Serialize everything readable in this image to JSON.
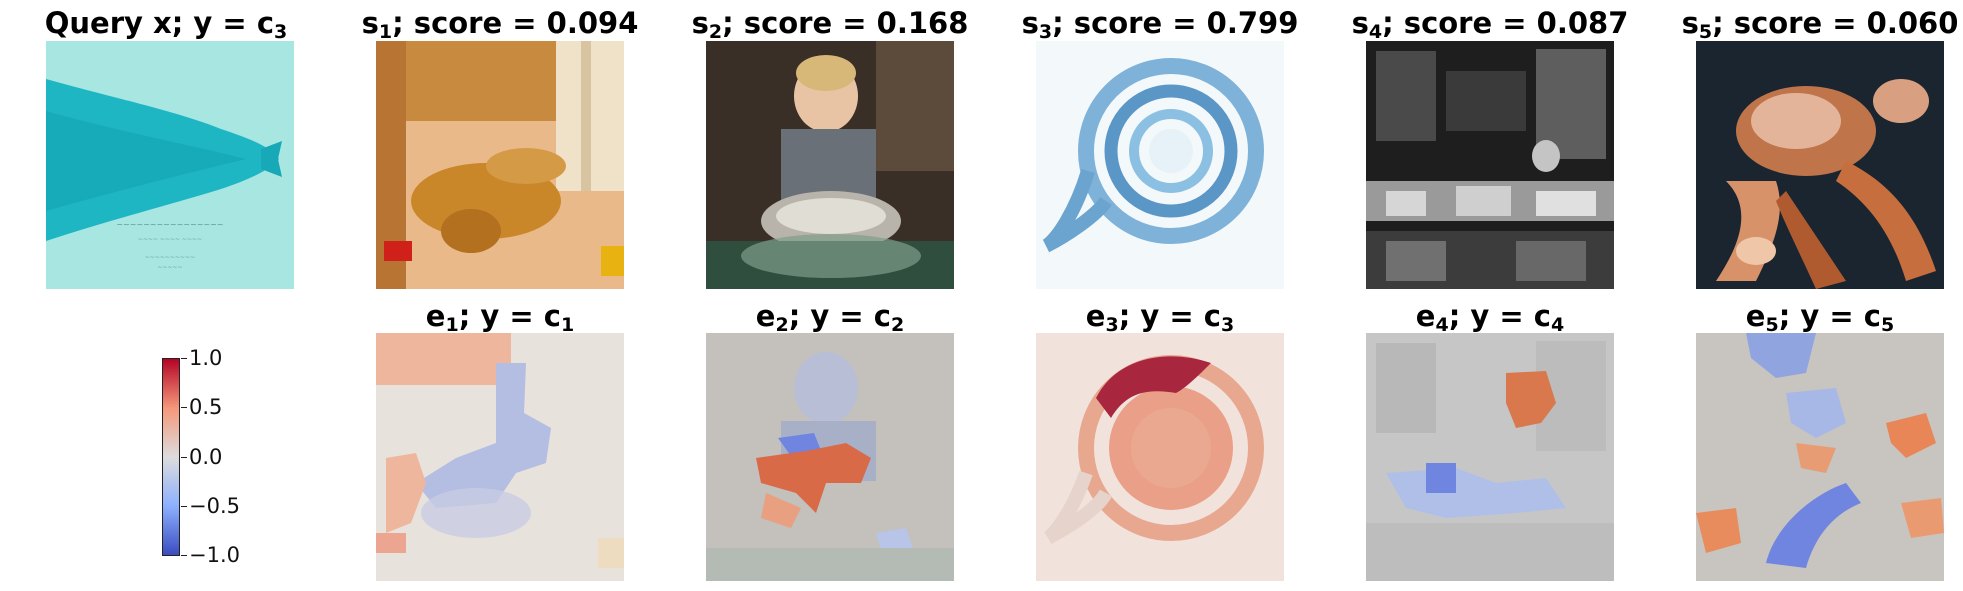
{
  "top_row": [
    {
      "prefix": "Query x; y = c",
      "sub": "3",
      "suffix": "",
      "image": "fish-drawing"
    },
    {
      "prefix": "s",
      "sub": "1",
      "suffix": "; score = 0.094",
      "image": "sleeping-dog"
    },
    {
      "prefix": "s",
      "sub": "2",
      "suffix": "; score = 0.168",
      "image": "child-baking"
    },
    {
      "prefix": "s",
      "sub": "3",
      "suffix": "; score = 0.799",
      "image": "nematode-spiral"
    },
    {
      "prefix": "s",
      "sub": "4",
      "suffix": "; score = 0.087",
      "image": "bookshop-bw"
    },
    {
      "prefix": "s",
      "sub": "5",
      "suffix": "; score = 0.060",
      "image": "crab"
    }
  ],
  "bottom_row": [
    {
      "prefix": "e",
      "sub": "1",
      "mid": "; y = c",
      "sub2": "1"
    },
    {
      "prefix": "e",
      "sub": "2",
      "mid": "; y = c",
      "sub2": "2"
    },
    {
      "prefix": "e",
      "sub": "3",
      "mid": "; y = c",
      "sub2": "3"
    },
    {
      "prefix": "e",
      "sub": "4",
      "mid": "; y = c",
      "sub2": "4"
    },
    {
      "prefix": "e",
      "sub": "5",
      "mid": "; y = c",
      "sub2": "5"
    }
  ],
  "colorbar": {
    "ticks": [
      "1.0",
      "0.5",
      "0.0",
      "−0.5",
      "−1.0"
    ],
    "colormap": [
      "#b40426",
      "#f4987a",
      "#dddcdc",
      "#8db0fe",
      "#3b4cc0"
    ]
  }
}
